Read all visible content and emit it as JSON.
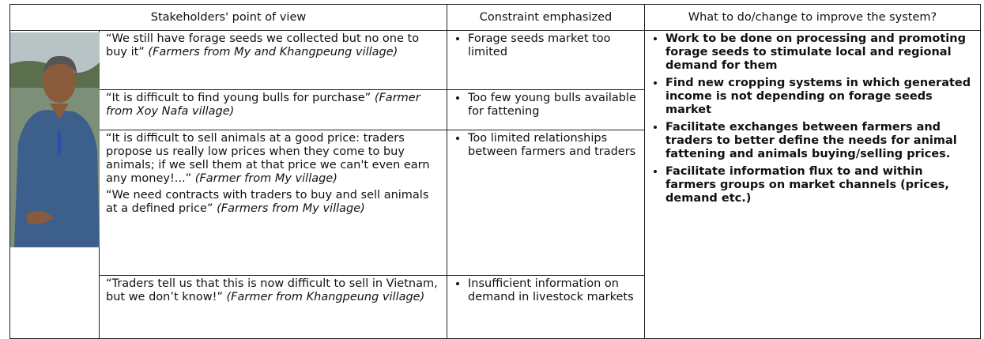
{
  "header": {
    "columns": [
      "Stakeholders' point of view",
      "Constraint emphasized",
      "What to do/change to improve the system?"
    ]
  },
  "rows": [
    {
      "quotes": [
        {
          "text": "“We still have forage seeds we collected but no one to buy it”",
          "source": "(Farmers from My and Khangpeung village)"
        }
      ],
      "constraint": "Forage seeds market too limited"
    },
    {
      "quotes": [
        {
          "text": "“It is difficult to find young bulls for purchase”",
          "source": "(Farmer from Xoy Nafa village)"
        }
      ],
      "constraint": "Too few young bulls available for fattening"
    },
    {
      "quotes": [
        {
          "text": "“It is difficult to sell animals at a good price: traders propose us really low prices when they come to buy animals; if we sell them at that price we can't even earn any money!...”",
          "source": "(Farmer from My village)"
        },
        {
          "text": "“We need contracts with traders to buy and sell animals at a defined price”",
          "source": "(Farmers from My village)"
        }
      ],
      "constraint": "Too limited relationships between farmers and traders"
    },
    {
      "quotes": [
        {
          "text": "“Traders tell us that this is now difficult to sell in Vietnam, but we don’t know!”",
          "source": "(Farmer from Khangpeung village)"
        }
      ],
      "constraint": "Insufficient information on demand in livestock markets"
    }
  ],
  "actions": [
    "Work to be done on processing and promoting forage seeds to stimulate local and regional demand for them",
    "Find new cropping systems in which generated income is not depending on forage seeds market",
    "Facilitate exchanges between farmers and traders to better define the needs for animal fattening and animals buying/selling prices.",
    "Facilitate information flux to and within farmers groups on market channels (prices, demand etc.)"
  ]
}
